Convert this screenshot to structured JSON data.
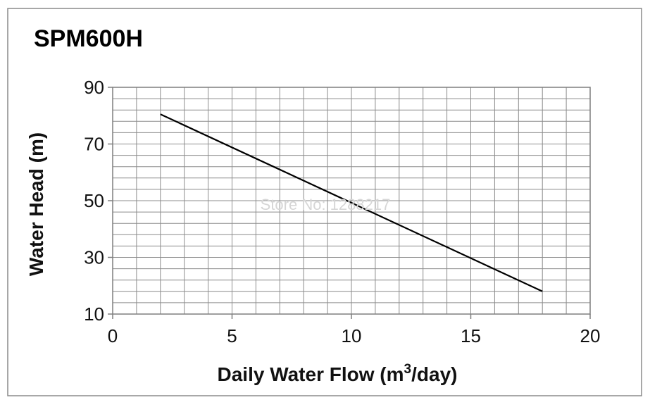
{
  "chart_data": {
    "type": "line",
    "title": "SPM600H",
    "xlabel_main": "Daily Water Flow (m",
    "xlabel_sup": "3",
    "xlabel_end": "/day)",
    "ylabel": "Water Head (m)",
    "xlim": [
      0,
      20
    ],
    "ylim": [
      10,
      90
    ],
    "x_ticks": [
      "0",
      "5",
      "10",
      "15",
      "20"
    ],
    "y_ticks": [
      "10",
      "30",
      "50",
      "70",
      "90"
    ],
    "grid": true,
    "series": [
      {
        "x": [
          2,
          18
        ],
        "y": [
          80.5,
          18
        ]
      }
    ]
  },
  "watermark": "Store No: 1288217",
  "colors": {
    "line": "#000000",
    "grid": "#8c8c8c",
    "frame": "#7f7f7f"
  }
}
